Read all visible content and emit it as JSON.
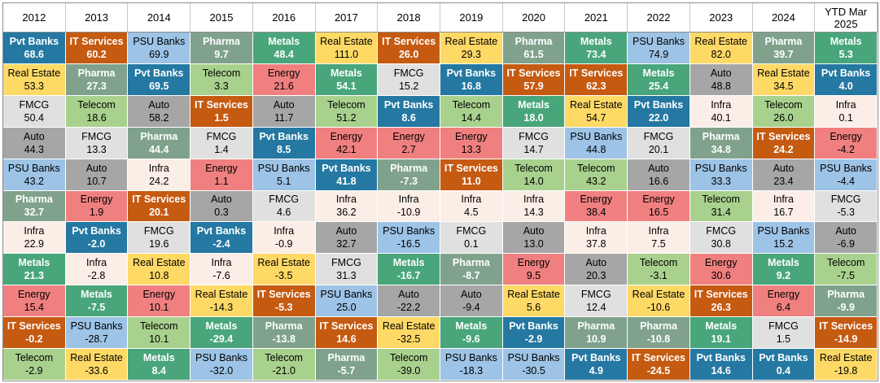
{
  "colors": {
    "Pvt Banks": {
      "bg": "#2478a2",
      "fg": "#ffffff",
      "bold": true
    },
    "IT Services": {
      "bg": "#c55a11",
      "fg": "#ffffff",
      "bold": true
    },
    "PSU Banks": {
      "bg": "#9dc3e6",
      "fg": "#000000",
      "bold": false
    },
    "Pharma": {
      "bg": "#80a28d",
      "fg": "#ffffff",
      "bold": true
    },
    "Metals": {
      "bg": "#48a67a",
      "fg": "#ffffff",
      "bold": true
    },
    "Real Estate": {
      "bg": "#ffd966",
      "fg": "#000000",
      "bold": false
    },
    "Telecom": {
      "bg": "#a9d18e",
      "fg": "#000000",
      "bold": false
    },
    "Energy": {
      "bg": "#f08080",
      "fg": "#000000",
      "bold": false
    },
    "FMCG": {
      "bg": "#e0e0e0",
      "fg": "#000000",
      "bold": false
    },
    "Auto": {
      "bg": "#a6a6a6",
      "fg": "#000000",
      "bold": false
    },
    "Infra": {
      "bg": "#fbeee6",
      "fg": "#000000",
      "bold": false
    }
  },
  "headers": [
    "2012",
    "2013",
    "2014",
    "2015",
    "2016",
    "2017",
    "2018",
    "2019",
    "2020",
    "2021",
    "2022",
    "2023",
    "2024",
    [
      "YTD Mar",
      "2025"
    ]
  ],
  "columns": [
    [
      [
        "Pvt Banks",
        "68.6"
      ],
      [
        "Real Estate",
        "53.3"
      ],
      [
        "FMCG",
        "50.4"
      ],
      [
        "Auto",
        "44.3"
      ],
      [
        "PSU Banks",
        "43.2"
      ],
      [
        "Pharma",
        "32.7"
      ],
      [
        "Infra",
        "22.9"
      ],
      [
        "Metals",
        "21.3"
      ],
      [
        "Energy",
        "15.4"
      ],
      [
        "IT Services",
        "-0.2"
      ],
      [
        "Telecom",
        "-2.9"
      ]
    ],
    [
      [
        "IT Services",
        "60.2"
      ],
      [
        "Pharma",
        "27.3"
      ],
      [
        "Telecom",
        "18.6"
      ],
      [
        "FMCG",
        "13.3"
      ],
      [
        "Auto",
        "10.7"
      ],
      [
        "Energy",
        "1.9"
      ],
      [
        "Pvt Banks",
        "-2.0"
      ],
      [
        "Infra",
        "-2.8"
      ],
      [
        "Metals",
        "-7.5"
      ],
      [
        "PSU Banks",
        "-28.7"
      ],
      [
        "Real Estate",
        "-33.6"
      ]
    ],
    [
      [
        "PSU Banks",
        "69.9"
      ],
      [
        "Pvt Banks",
        "69.5"
      ],
      [
        "Auto",
        "58.2"
      ],
      [
        "Pharma",
        "44.4"
      ],
      [
        "Infra",
        "24.2"
      ],
      [
        "IT Services",
        "20.1"
      ],
      [
        "FMCG",
        "19.6"
      ],
      [
        "Real Estate",
        "10.8"
      ],
      [
        "Energy",
        "10.1"
      ],
      [
        "Telecom",
        "10.1"
      ],
      [
        "Metals",
        "8.4"
      ]
    ],
    [
      [
        "Pharma",
        "9.7"
      ],
      [
        "Telecom",
        "3.3"
      ],
      [
        "IT Services",
        "1.5"
      ],
      [
        "FMCG",
        "1.4"
      ],
      [
        "Energy",
        "1.1"
      ],
      [
        "Auto",
        "0.3"
      ],
      [
        "Pvt Banks",
        "-2.4"
      ],
      [
        "Infra",
        "-7.6"
      ],
      [
        "Real Estate",
        "-14.3"
      ],
      [
        "Metals",
        "-29.4"
      ],
      [
        "PSU Banks",
        "-32.0"
      ]
    ],
    [
      [
        "Metals",
        "48.4"
      ],
      [
        "Energy",
        "21.6"
      ],
      [
        "Auto",
        "11.7"
      ],
      [
        "Pvt Banks",
        "8.5"
      ],
      [
        "PSU Banks",
        "5.1"
      ],
      [
        "FMCG",
        "4.6"
      ],
      [
        "Infra",
        "-0.9"
      ],
      [
        "Real Estate",
        "-3.5"
      ],
      [
        "IT Services",
        "-5.3"
      ],
      [
        "Pharma",
        "-13.8"
      ],
      [
        "Telecom",
        "-21.0"
      ]
    ],
    [
      [
        "Real Estate",
        "111.0"
      ],
      [
        "Metals",
        "54.1"
      ],
      [
        "Telecom",
        "51.2"
      ],
      [
        "Energy",
        "42.1"
      ],
      [
        "Pvt Banks",
        "41.8"
      ],
      [
        "Infra",
        "36.2"
      ],
      [
        "Auto",
        "32.7"
      ],
      [
        "FMCG",
        "31.3"
      ],
      [
        "PSU Banks",
        "25.0"
      ],
      [
        "IT Services",
        "14.6"
      ],
      [
        "Pharma",
        "-5.7"
      ]
    ],
    [
      [
        "IT Services",
        "26.0"
      ],
      [
        "FMCG",
        "15.2"
      ],
      [
        "Pvt Banks",
        "8.6"
      ],
      [
        "Energy",
        "2.7"
      ],
      [
        "Pharma",
        "-7.3"
      ],
      [
        "Infra",
        "-10.9"
      ],
      [
        "PSU Banks",
        "-16.5"
      ],
      [
        "Metals",
        "-16.7"
      ],
      [
        "Auto",
        "-22.2"
      ],
      [
        "Real Estate",
        "-32.5"
      ],
      [
        "Telecom",
        "-39.0"
      ]
    ],
    [
      [
        "Real Estate",
        "29.3"
      ],
      [
        "Pvt Banks",
        "16.8"
      ],
      [
        "Telecom",
        "14.4"
      ],
      [
        "Energy",
        "13.3"
      ],
      [
        "IT Services",
        "11.0"
      ],
      [
        "Infra",
        "4.5"
      ],
      [
        "FMCG",
        "0.1"
      ],
      [
        "Pharma",
        "-8.7"
      ],
      [
        "Auto",
        "-9.4"
      ],
      [
        "Metals",
        "-9.6"
      ],
      [
        "PSU Banks",
        "-18.3"
      ]
    ],
    [
      [
        "Pharma",
        "61.5"
      ],
      [
        "IT Services",
        "57.9"
      ],
      [
        "Metals",
        "18.0"
      ],
      [
        "FMCG",
        "14.7"
      ],
      [
        "Telecom",
        "14.0"
      ],
      [
        "Infra",
        "14.3"
      ],
      [
        "Auto",
        "13.0"
      ],
      [
        "Energy",
        "9.5"
      ],
      [
        "Real Estate",
        "5.6"
      ],
      [
        "Pvt Banks",
        "-2.9"
      ],
      [
        "PSU Banks",
        "-30.5"
      ]
    ],
    [
      [
        "Metals",
        "73.4"
      ],
      [
        "IT Services",
        "62.3"
      ],
      [
        "Real Estate",
        "54.7"
      ],
      [
        "PSU Banks",
        "44.8"
      ],
      [
        "Telecom",
        "43.2"
      ],
      [
        "Energy",
        "38.4"
      ],
      [
        "Infra",
        "37.8"
      ],
      [
        "Auto",
        "20.3"
      ],
      [
        "FMCG",
        "12.4"
      ],
      [
        "Pharma",
        "10.9"
      ],
      [
        "Pvt Banks",
        "4.9"
      ]
    ],
    [
      [
        "PSU Banks",
        "74.9"
      ],
      [
        "Metals",
        "25.4"
      ],
      [
        "Pvt Banks",
        "22.0"
      ],
      [
        "FMCG",
        "20.1"
      ],
      [
        "Auto",
        "16.6"
      ],
      [
        "Energy",
        "16.5"
      ],
      [
        "Infra",
        "7.5"
      ],
      [
        "Telecom",
        "-3.1"
      ],
      [
        "Real Estate",
        "-10.6"
      ],
      [
        "Pharma",
        "-10.8"
      ],
      [
        "IT Services",
        "-24.5"
      ]
    ],
    [
      [
        "Real Estate",
        "82.0"
      ],
      [
        "Auto",
        "48.8"
      ],
      [
        "Infra",
        "40.1"
      ],
      [
        "Pharma",
        "34.8"
      ],
      [
        "PSU Banks",
        "33.3"
      ],
      [
        "Telecom",
        "31.4"
      ],
      [
        "FMCG",
        "30.8"
      ],
      [
        "Energy",
        "30.6"
      ],
      [
        "IT Services",
        "26.3"
      ],
      [
        "Metals",
        "19.1"
      ],
      [
        "Pvt Banks",
        "14.6"
      ]
    ],
    [
      [
        "Pharma",
        "39.7"
      ],
      [
        "Real Estate",
        "34.5"
      ],
      [
        "Telecom",
        "26.0"
      ],
      [
        "IT Services",
        "24.2"
      ],
      [
        "Auto",
        "23.4"
      ],
      [
        "Infra",
        "16.7"
      ],
      [
        "PSU Banks",
        "15.2"
      ],
      [
        "Metals",
        "9.2"
      ],
      [
        "Energy",
        "6.4"
      ],
      [
        "FMCG",
        "1.5"
      ],
      [
        "Pvt Banks",
        "0.4"
      ]
    ],
    [
      [
        "Metals",
        "5.3"
      ],
      [
        "Pvt Banks",
        "4.0"
      ],
      [
        "Infra",
        "0.1"
      ],
      [
        "Energy",
        "-4.2"
      ],
      [
        "PSU Banks",
        "-4.4"
      ],
      [
        "FMCG",
        "-5.3"
      ],
      [
        "Auto",
        "-6.9"
      ],
      [
        "Telecom",
        "-7.5"
      ],
      [
        "Pharma",
        "-9.9"
      ],
      [
        "IT Services",
        "-14.9"
      ],
      [
        "Real Estate",
        "-19.8"
      ]
    ]
  ]
}
